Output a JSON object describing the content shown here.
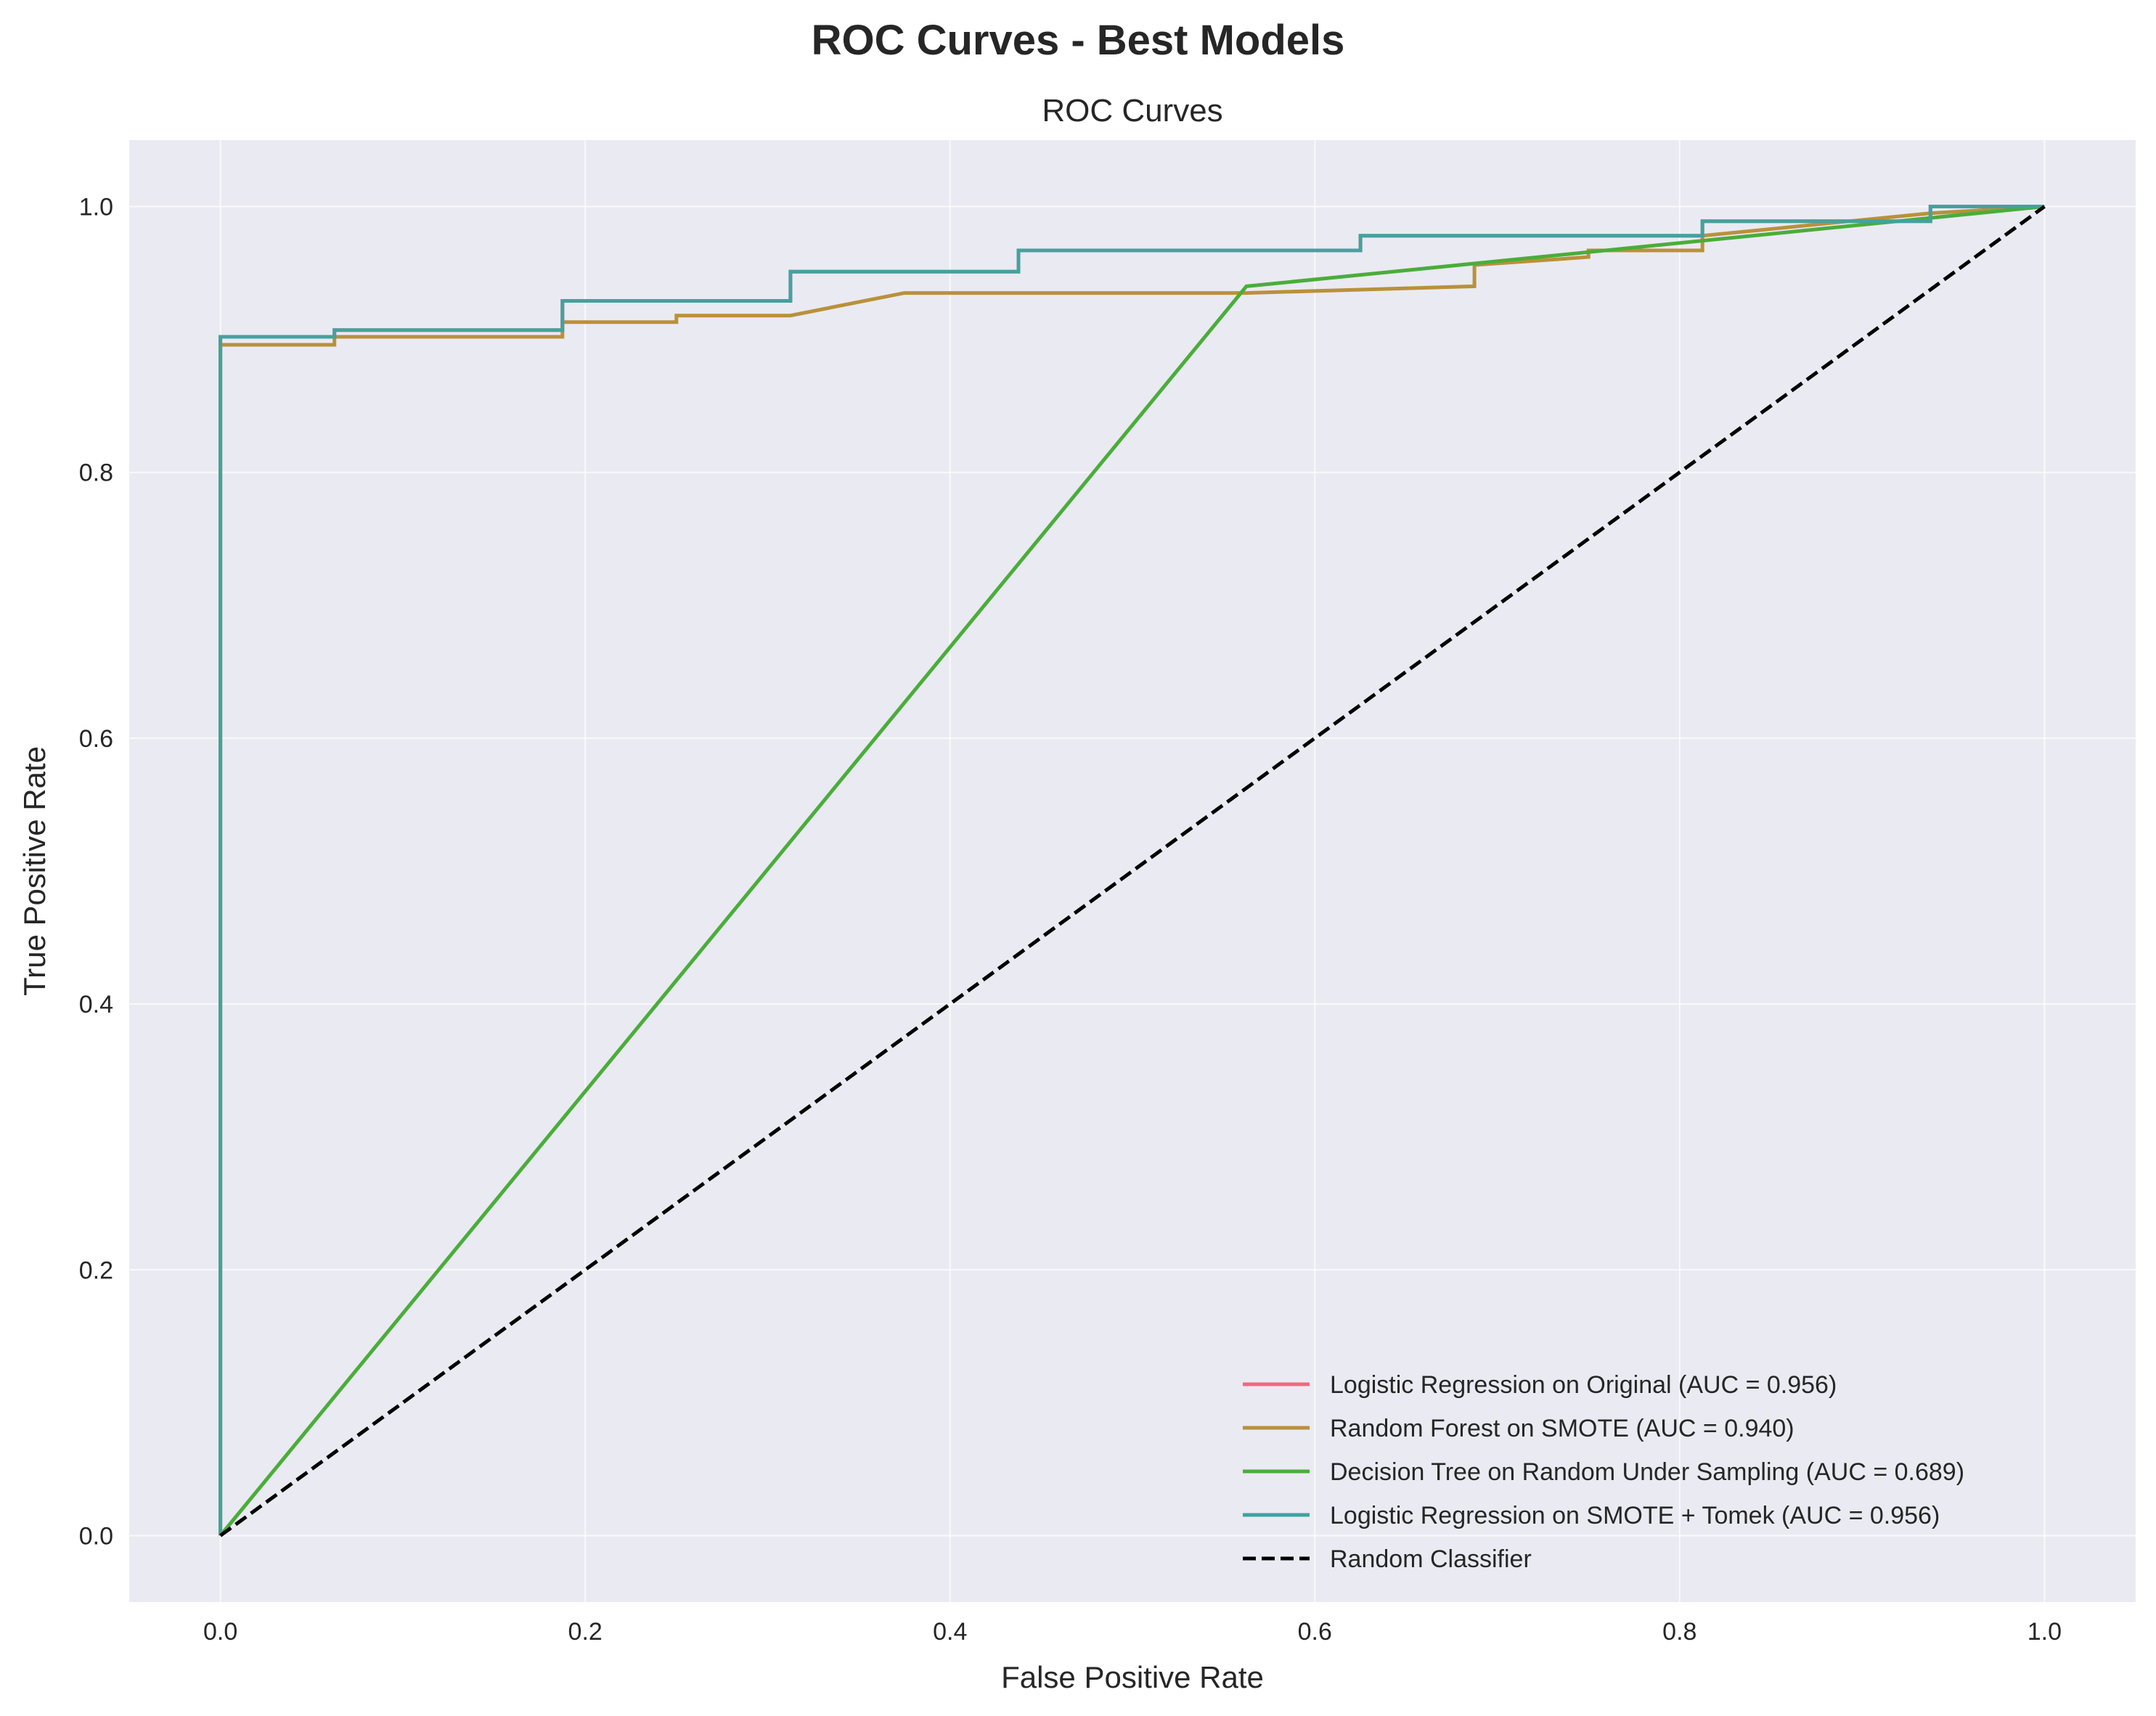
{
  "figure": {
    "suptitle": "ROC Curves - Best Models"
  },
  "chart_data": {
    "type": "line",
    "title": "ROC Curves",
    "xlabel": "False Positive Rate",
    "ylabel": "True Positive Rate",
    "xlim": [
      -0.05,
      1.05
    ],
    "ylim": [
      -0.05,
      1.05
    ],
    "xticks": [
      0.0,
      0.2,
      0.4,
      0.6,
      0.8,
      1.0
    ],
    "yticks": [
      0.0,
      0.2,
      0.4,
      0.6,
      0.8,
      1.0
    ],
    "xtick_labels": [
      "0.0",
      "0.2",
      "0.4",
      "0.6",
      "0.8",
      "1.0"
    ],
    "ytick_labels": [
      "0.0",
      "0.2",
      "0.4",
      "0.6",
      "0.8",
      "1.0"
    ],
    "grid": true,
    "legend_position": "lower-right",
    "background_color": "#eaeaf2",
    "series": [
      {
        "name": "Logistic Regression on Original (AUC = 0.956)",
        "color": "#f2677f",
        "dash": "solid",
        "x": [
          0,
          0,
          0.0625,
          0.0625,
          0.1875,
          0.1875,
          0.3125,
          0.3125,
          0.4375,
          0.4375,
          0.625,
          0.625,
          0.8125,
          0.8125,
          0.9375,
          0.9375,
          1.0
        ],
        "y": [
          0,
          0.902,
          0.902,
          0.907,
          0.907,
          0.929,
          0.929,
          0.951,
          0.951,
          0.967,
          0.967,
          0.978,
          0.978,
          0.989,
          0.989,
          1.0,
          1.0
        ]
      },
      {
        "name": "Random Forest on SMOTE (AUC = 0.940)",
        "color": "#b9913a",
        "dash": "solid",
        "x": [
          0,
          0,
          0.0625,
          0.0625,
          0.1875,
          0.1875,
          0.25,
          0.25,
          0.3125,
          0.375,
          0.5625,
          0.6875,
          0.6875,
          0.75,
          0.75,
          0.8125,
          0.8125,
          0.9375,
          1.0
        ],
        "y": [
          0,
          0.896,
          0.896,
          0.902,
          0.902,
          0.913,
          0.913,
          0.918,
          0.918,
          0.935,
          0.935,
          0.94,
          0.956,
          0.962,
          0.967,
          0.967,
          0.978,
          0.995,
          1.0
        ]
      },
      {
        "name": "Decision Tree on Random Under Sampling (AUC = 0.689)",
        "color": "#4aad3a",
        "dash": "solid",
        "x": [
          0,
          0.5625,
          1.0
        ],
        "y": [
          0,
          0.94,
          1.0
        ]
      },
      {
        "name": "Logistic Regression on SMOTE + Tomek (AUC = 0.956)",
        "color": "#3ba4a0",
        "dash": "solid",
        "x": [
          0,
          0,
          0.0625,
          0.0625,
          0.1875,
          0.1875,
          0.3125,
          0.3125,
          0.4375,
          0.4375,
          0.625,
          0.625,
          0.8125,
          0.8125,
          0.9375,
          0.9375,
          1.0
        ],
        "y": [
          0,
          0.902,
          0.902,
          0.907,
          0.907,
          0.929,
          0.929,
          0.951,
          0.951,
          0.967,
          0.967,
          0.978,
          0.978,
          0.989,
          0.989,
          1.0,
          1.0
        ]
      },
      {
        "name": "Random Classifier",
        "color": "#000000",
        "dash": "dashed",
        "x": [
          0,
          1.0
        ],
        "y": [
          0,
          1.0
        ]
      }
    ]
  }
}
